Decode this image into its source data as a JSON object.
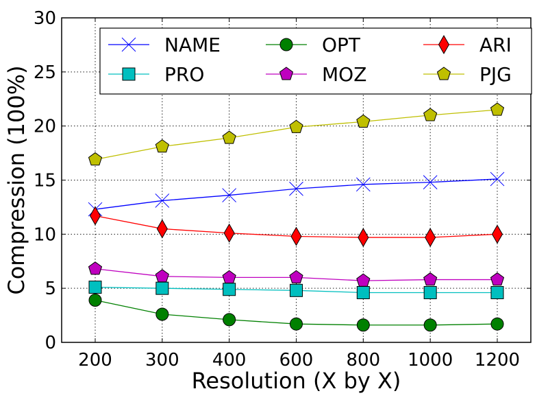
{
  "chart_data": {
    "type": "line",
    "categories": [
      "200",
      "300",
      "400",
      "600",
      "800",
      "1000",
      "1200"
    ],
    "xlabel": "Resolution (X by X)",
    "ylabel": "Compression (100%)",
    "ylim": [
      0,
      30
    ],
    "yticks": [
      0,
      5,
      10,
      15,
      20,
      25,
      30
    ],
    "grid": true,
    "legend_position": "top",
    "series": [
      {
        "name": "NAME",
        "color": "#0000ff",
        "marker": "x",
        "values": [
          12.3,
          13.1,
          13.6,
          14.2,
          14.6,
          14.8,
          15.1
        ]
      },
      {
        "name": "OPT",
        "color": "#008000",
        "marker": "circle",
        "values": [
          3.9,
          2.6,
          2.1,
          1.7,
          1.6,
          1.6,
          1.7
        ]
      },
      {
        "name": "ARI",
        "color": "#ff0000",
        "marker": "diamond",
        "values": [
          11.7,
          10.5,
          10.1,
          9.8,
          9.7,
          9.7,
          10.0
        ]
      },
      {
        "name": "PRO",
        "color": "#00bfbf",
        "marker": "square",
        "values": [
          5.1,
          5.0,
          4.9,
          4.8,
          4.6,
          4.6,
          4.6
        ]
      },
      {
        "name": "MOZ",
        "color": "#bf00bf",
        "marker": "pentagon",
        "values": [
          6.8,
          6.1,
          6.0,
          6.0,
          5.7,
          5.8,
          5.8
        ]
      },
      {
        "name": "PJG",
        "color": "#bfbf00",
        "marker": "pentagon",
        "values": [
          16.9,
          18.1,
          18.9,
          19.9,
          20.4,
          21.0,
          21.5
        ]
      }
    ]
  }
}
